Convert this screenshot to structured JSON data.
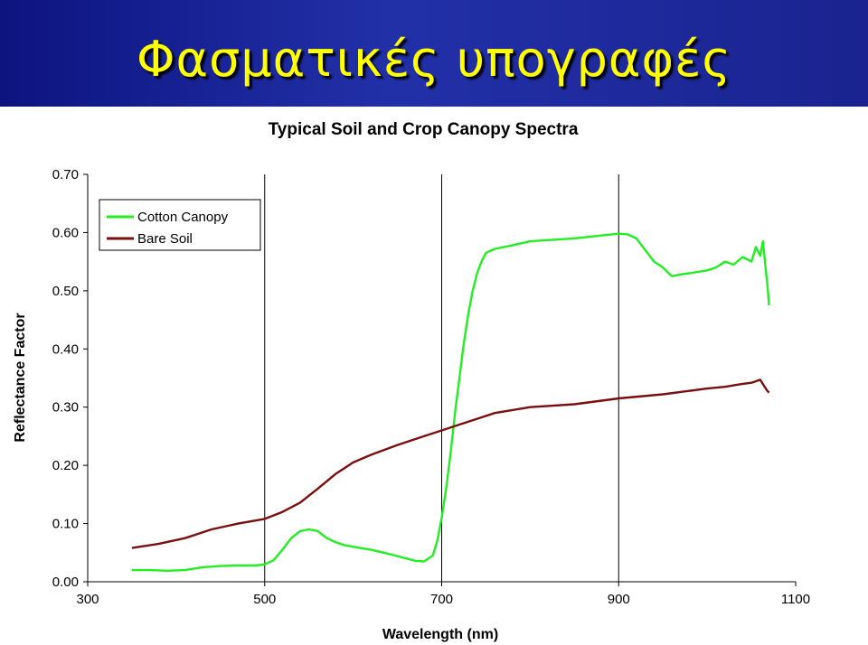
{
  "slide": {
    "title": "Φασματικές υπογραφές",
    "header_color": "#1a2596",
    "title_color": "#ffff00"
  },
  "chart_data": {
    "type": "line",
    "title": "Typical Soil and Crop Canopy Spectra",
    "xlabel": "Wavelength (nm)",
    "ylabel": "Reflectance Factor",
    "xlim": [
      300,
      1100
    ],
    "ylim": [
      0,
      0.7
    ],
    "xticks": [
      300,
      500,
      700,
      900,
      1100
    ],
    "xtick_labels": [
      "300",
      "500",
      "700",
      "900",
      "1100"
    ],
    "yticks": [
      0,
      0.1,
      0.2,
      0.3,
      0.4,
      0.5,
      0.6,
      0.7
    ],
    "ytick_labels": [
      "0.00",
      "0.10",
      "0.20",
      "0.30",
      "0.40",
      "0.50",
      "0.60",
      "0.70"
    ],
    "vertical_gridlines": [
      500,
      700,
      900
    ],
    "legend_position": "top-left",
    "series": [
      {
        "name": "Cotton Canopy",
        "color": "#22ee22",
        "x": [
          350,
          370,
          390,
          410,
          430,
          450,
          470,
          490,
          500,
          510,
          520,
          530,
          540,
          550,
          560,
          570,
          580,
          590,
          600,
          620,
          640,
          660,
          670,
          680,
          690,
          695,
          700,
          705,
          710,
          715,
          720,
          725,
          730,
          735,
          740,
          745,
          750,
          760,
          780,
          800,
          850,
          880,
          900,
          910,
          920,
          930,
          940,
          950,
          960,
          970,
          980,
          1000,
          1010,
          1020,
          1030,
          1040,
          1050,
          1055,
          1060,
          1063,
          1066,
          1068,
          1070
        ],
        "y": [
          0.02,
          0.02,
          0.019,
          0.02,
          0.025,
          0.027,
          0.028,
          0.028,
          0.03,
          0.037,
          0.055,
          0.075,
          0.087,
          0.09,
          0.087,
          0.075,
          0.068,
          0.063,
          0.06,
          0.055,
          0.048,
          0.04,
          0.036,
          0.035,
          0.045,
          0.07,
          0.11,
          0.16,
          0.22,
          0.29,
          0.35,
          0.41,
          0.46,
          0.5,
          0.53,
          0.55,
          0.565,
          0.572,
          0.578,
          0.585,
          0.59,
          0.595,
          0.598,
          0.597,
          0.59,
          0.57,
          0.55,
          0.54,
          0.525,
          0.528,
          0.53,
          0.535,
          0.54,
          0.55,
          0.545,
          0.558,
          0.55,
          0.575,
          0.56,
          0.585,
          0.54,
          0.51,
          0.475
        ]
      },
      {
        "name": "Bare Soil",
        "color": "#7a0f0f",
        "x": [
          350,
          380,
          410,
          440,
          470,
          500,
          520,
          540,
          560,
          580,
          600,
          620,
          650,
          680,
          700,
          720,
          740,
          760,
          780,
          800,
          850,
          900,
          950,
          1000,
          1020,
          1040,
          1050,
          1060,
          1065,
          1068,
          1070
        ],
        "y": [
          0.058,
          0.065,
          0.075,
          0.09,
          0.1,
          0.108,
          0.12,
          0.136,
          0.16,
          0.185,
          0.205,
          0.218,
          0.235,
          0.25,
          0.26,
          0.27,
          0.28,
          0.29,
          0.295,
          0.3,
          0.305,
          0.315,
          0.322,
          0.332,
          0.335,
          0.34,
          0.342,
          0.347,
          0.335,
          0.328,
          0.325
        ]
      }
    ]
  }
}
